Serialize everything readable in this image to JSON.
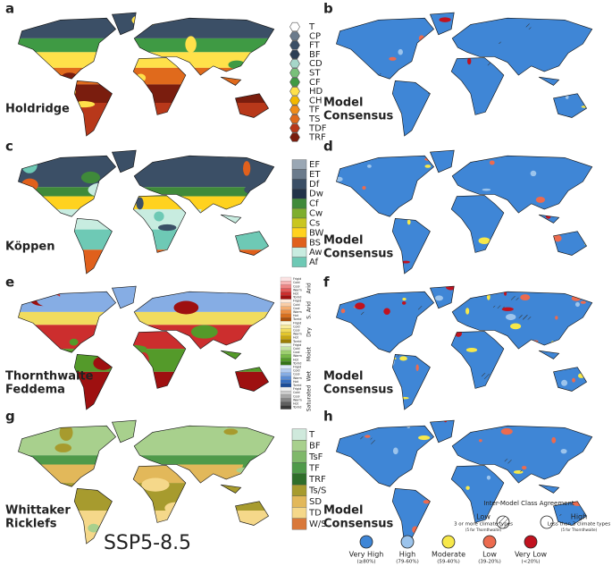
{
  "panels": [
    {
      "letter": "a",
      "label": [
        "Holdridge"
      ],
      "legend_kind": "hex",
      "legend": [
        {
          "code": "T",
          "color": "#ffffff"
        },
        {
          "code": "CP",
          "color": "#6b7b8c"
        },
        {
          "code": "FT",
          "color": "#3b4f66"
        },
        {
          "code": "BF",
          "color": "#2c3e55"
        },
        {
          "code": "CD",
          "color": "#a6d6c9"
        },
        {
          "code": "ST",
          "color": "#79c07a"
        },
        {
          "code": "CF",
          "color": "#3f9a44"
        },
        {
          "code": "HD",
          "color": "#ffe14a"
        },
        {
          "code": "CH",
          "color": "#f3b800"
        },
        {
          "code": "TF",
          "color": "#f08c1a"
        },
        {
          "code": "TS",
          "color": "#e06a1c"
        },
        {
          "code": "TDF",
          "color": "#b8381a"
        },
        {
          "code": "TRF",
          "color": "#7a1d0e"
        }
      ]
    },
    {
      "letter": "b",
      "label": [
        "Model",
        "Consensus"
      ]
    },
    {
      "letter": "c",
      "label": [
        "Köppen"
      ],
      "legend_kind": "box",
      "legend": [
        {
          "code": "EF",
          "color": "#9aa7b4"
        },
        {
          "code": "ET",
          "color": "#6b7b8c"
        },
        {
          "code": "Df",
          "color": "#3b4f66"
        },
        {
          "code": "Dw",
          "color": "#22334a"
        },
        {
          "code": "Cf",
          "color": "#3f8a3a"
        },
        {
          "code": "Cw",
          "color": "#7eae2e"
        },
        {
          "code": "Cs",
          "color": "#c9c620"
        },
        {
          "code": "BW",
          "color": "#ffd21f"
        },
        {
          "code": "BS",
          "color": "#e0601c"
        },
        {
          "code": "Aw",
          "color": "#c8ece0"
        },
        {
          "code": "Af",
          "color": "#6ec9b5"
        }
      ]
    },
    {
      "letter": "d",
      "label": [
        "Model",
        "Consensus"
      ]
    },
    {
      "letter": "e",
      "label": [
        "Thornthwaite",
        "Feddema"
      ],
      "legend_kind": "groups",
      "subclasses": [
        "Frigid",
        "Cold",
        "Cool",
        "Warm",
        "Hot",
        "Torrid"
      ],
      "groups": [
        {
          "name": "Arid",
          "colors": [
            "#fbe3e3",
            "#f6b6b6",
            "#ef8686",
            "#e35a5a",
            "#cc2e2e",
            "#9e1010"
          ]
        },
        {
          "name": "S. Arid",
          "colors": [
            "#fdeadb",
            "#f9cda7",
            "#f4ae72",
            "#ec8e43",
            "#d8701f",
            "#a84e0c"
          ]
        },
        {
          "name": "Dry",
          "colors": [
            "#fdf7d8",
            "#f8eb9c",
            "#f1dc5e",
            "#e3c62c",
            "#c9a812",
            "#9c7f05"
          ]
        },
        {
          "name": "Moist",
          "colors": [
            "#e6f3d6",
            "#c4e3a3",
            "#9dcf6f",
            "#77b847",
            "#549a2a",
            "#357416"
          ]
        },
        {
          "name": "Wet",
          "colors": [
            "#dde9f8",
            "#b4cdf0",
            "#86ade4",
            "#5b8dd5",
            "#356dbf",
            "#1b4c98"
          ]
        },
        {
          "name": "Saturated",
          "colors": [
            "#eeeeee",
            "#cccccc",
            "#a8a8a8",
            "#858585",
            "#5f5f5f",
            "#383838"
          ]
        }
      ]
    },
    {
      "letter": "f",
      "label": [
        "Model",
        "Consensus"
      ]
    },
    {
      "letter": "g",
      "label": [
        "Whittaker",
        "Ricklefs"
      ],
      "legend_kind": "box",
      "legend": [
        {
          "code": "T",
          "color": "#cfe9dc"
        },
        {
          "code": "BF",
          "color": "#a8d08d"
        },
        {
          "code": "TsF",
          "color": "#7fb86a"
        },
        {
          "code": "TF",
          "color": "#4f9a4a"
        },
        {
          "code": "TRF",
          "color": "#2f6e2a"
        },
        {
          "code": "Ts/S",
          "color": "#a79b2e"
        },
        {
          "code": "SD",
          "color": "#e2b85a"
        },
        {
          "code": "TD",
          "color": "#f5d88a"
        },
        {
          "code": "W/S",
          "color": "#d9783a"
        }
      ]
    },
    {
      "letter": "h",
      "label": [
        "Model",
        "Consensus"
      ]
    }
  ],
  "scenario": "SSP5-8.5",
  "consensus_legend": [
    {
      "label": "Very High",
      "range": "(≥80%)",
      "color": "#3f86d6"
    },
    {
      "label": "High",
      "range": "(79-60%)",
      "color": "#9cc4ec"
    },
    {
      "label": "Moderate",
      "range": "(59-40%)",
      "color": "#f7e84a"
    },
    {
      "label": "Low",
      "range": "(39-20%)",
      "color": "#ec6b4f"
    },
    {
      "label": "Very Low",
      "range": "(<20%)",
      "color": "#c1121f"
    }
  ],
  "agreement": {
    "title": "Inter-Model Class Agreement",
    "low": {
      "label": "Low",
      "desc": "3 or more climate types",
      "note": "(5 for Thornthwaite)"
    },
    "high": {
      "label": "High",
      "desc": "Less than 3 climate types",
      "note": "(5 for Thornthwaite)"
    }
  }
}
